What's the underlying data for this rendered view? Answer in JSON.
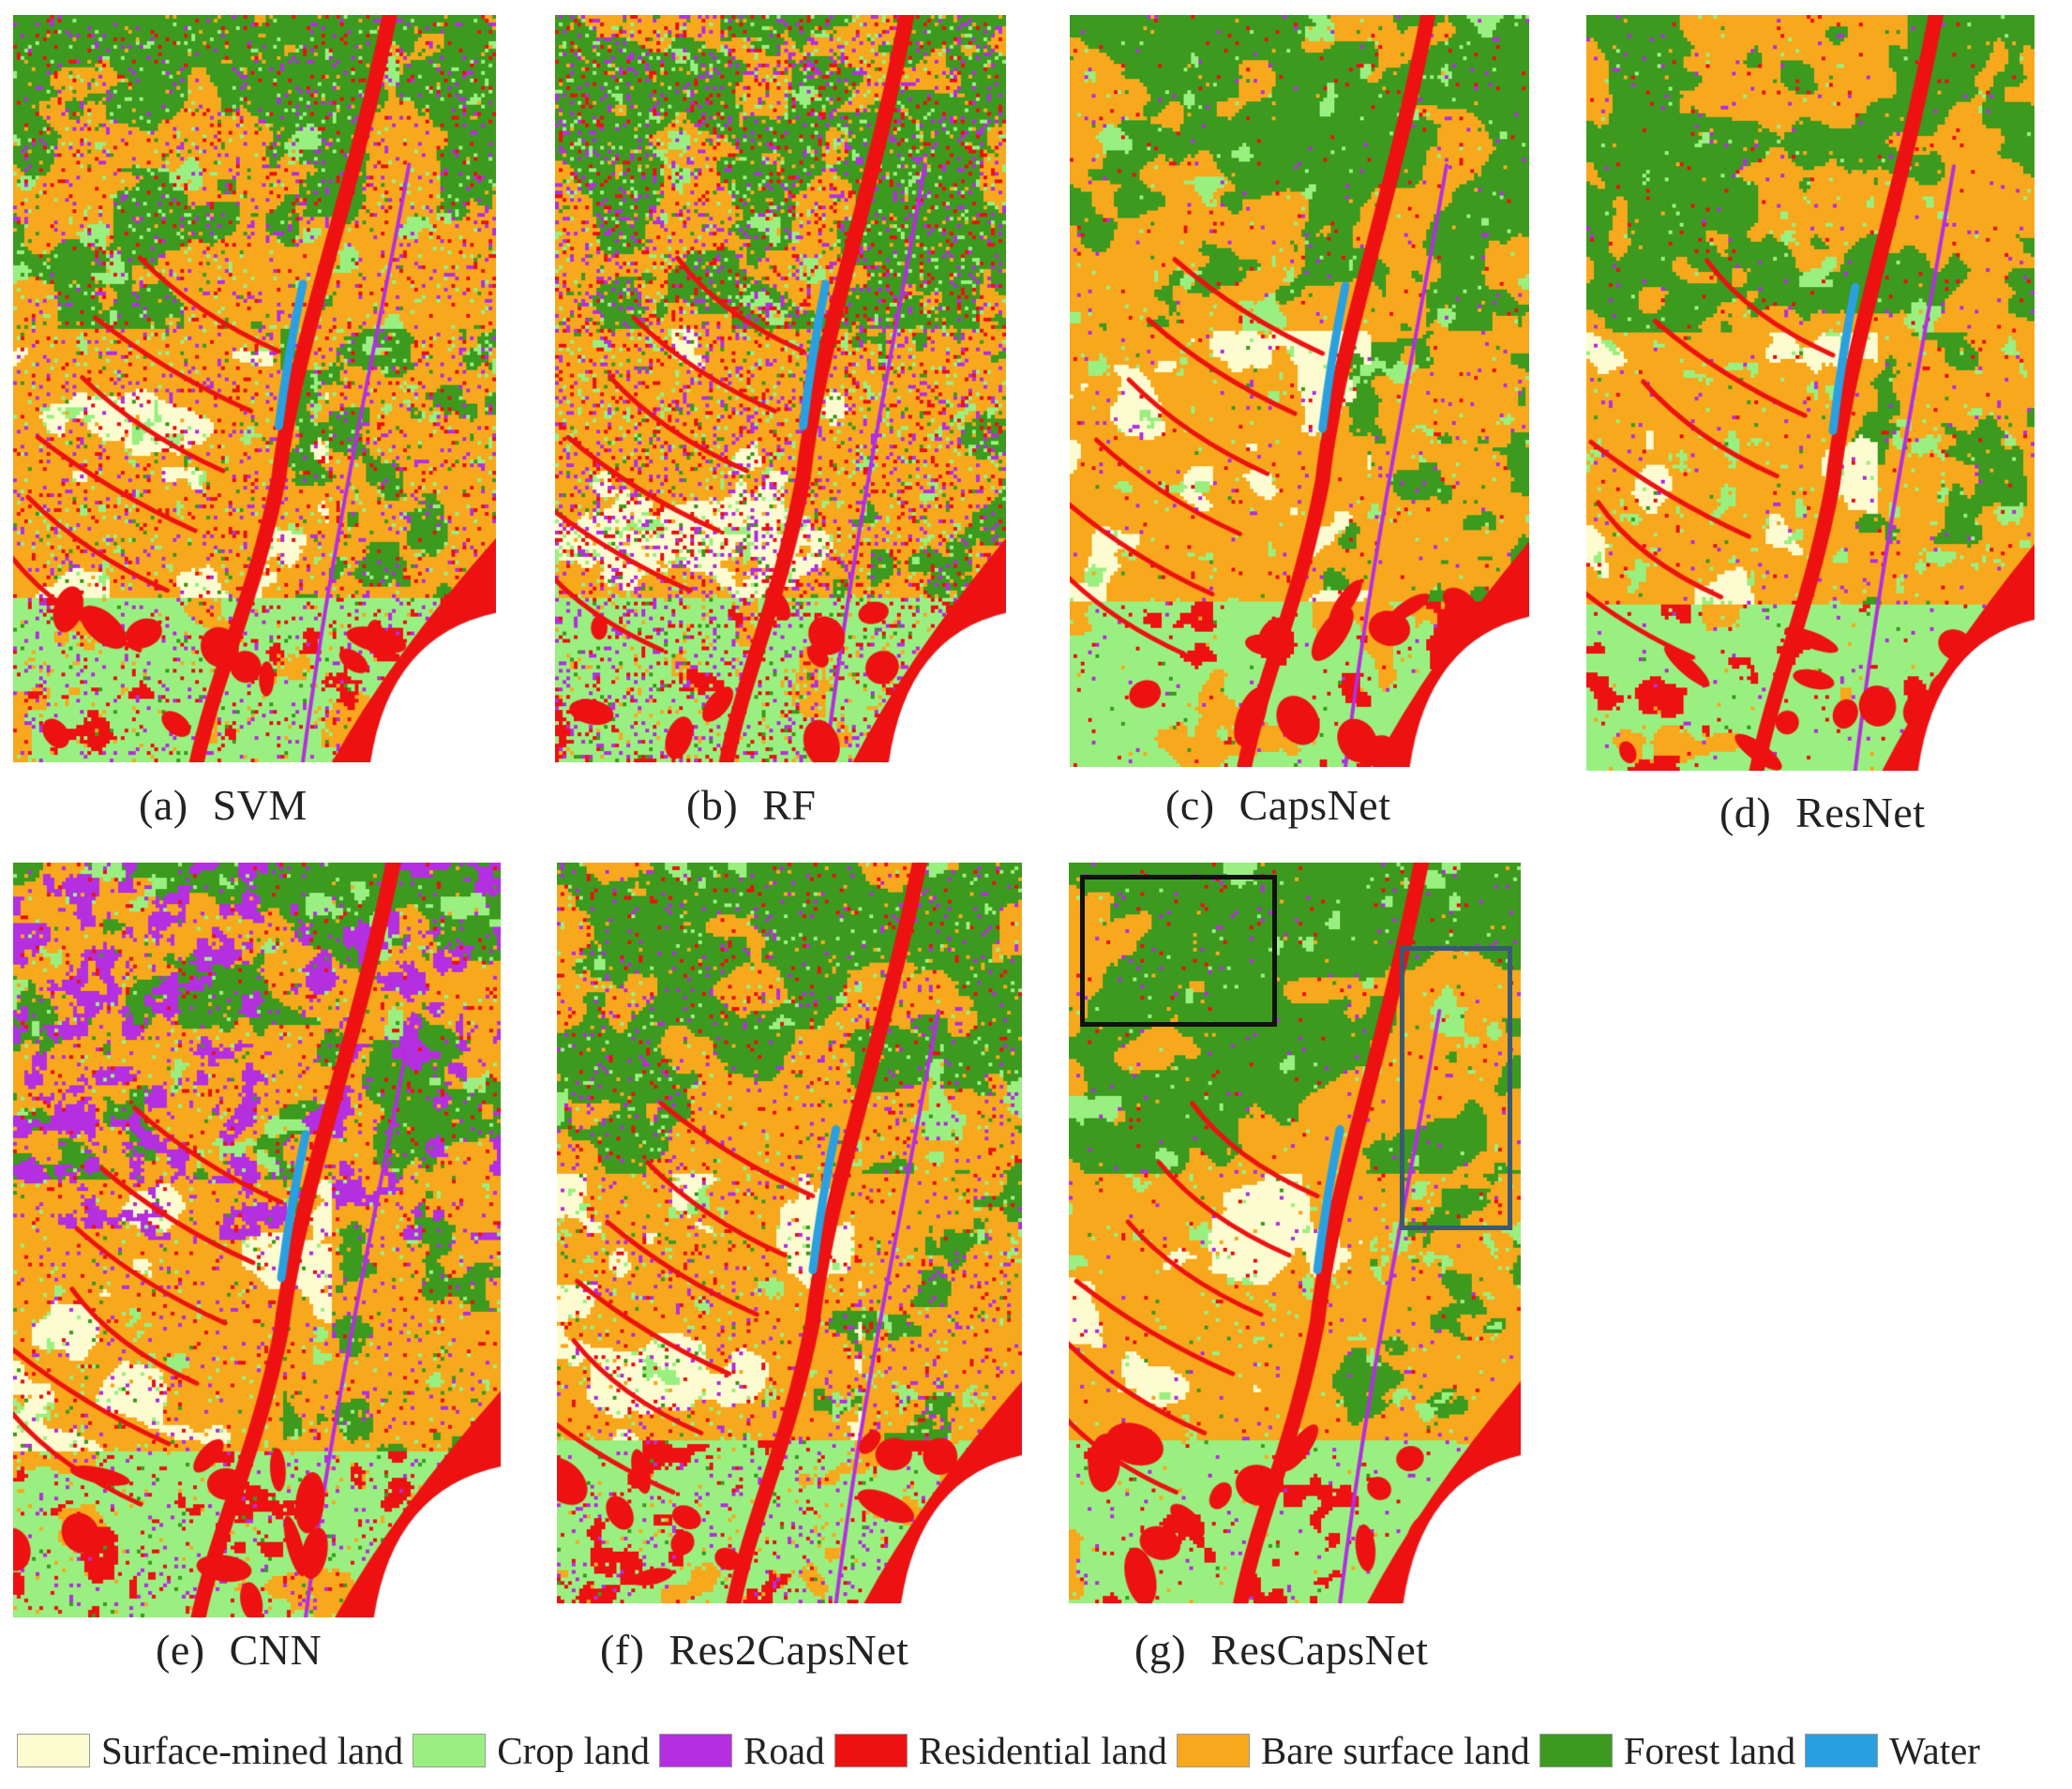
{
  "panels": [
    {
      "id": "a",
      "label": "(a)",
      "name": "SVM",
      "style": "noisy",
      "seed": 11
    },
    {
      "id": "b",
      "label": "(b)",
      "name": "RF",
      "style": "very-noisy",
      "seed": 23
    },
    {
      "id": "c",
      "label": "(c)",
      "name": "CapsNet",
      "style": "smooth",
      "seed": 37
    },
    {
      "id": "d",
      "label": "(d)",
      "name": "ResNet",
      "style": "smooth",
      "seed": 41
    },
    {
      "id": "e",
      "label": "(e)",
      "name": "CNN",
      "style": "road-heavy",
      "seed": 53
    },
    {
      "id": "f",
      "label": "(f)",
      "name": "Res2CapsNet",
      "style": "textured",
      "seed": 67
    },
    {
      "id": "g",
      "label": "(g)",
      "name": "ResCapsNet",
      "style": "smooth",
      "seed": 79
    }
  ],
  "legend": [
    {
      "label": "Surface-mined land",
      "color": "#fdfbd0"
    },
    {
      "label": "Crop land",
      "color": "#99f080"
    },
    {
      "label": "Road",
      "color": "#b42fe0"
    },
    {
      "label": "Residential land",
      "color": "#ee1111"
    },
    {
      "label": "Bare surface land",
      "color": "#f8a81c"
    },
    {
      "label": "Forest land",
      "color": "#3c9a1e"
    },
    {
      "label": "Water",
      "color": "#2aa0e0"
    }
  ],
  "highlights": [
    {
      "panel": "g",
      "color": "#111111"
    },
    {
      "panel": "g",
      "color": "#3a5a74"
    }
  ]
}
